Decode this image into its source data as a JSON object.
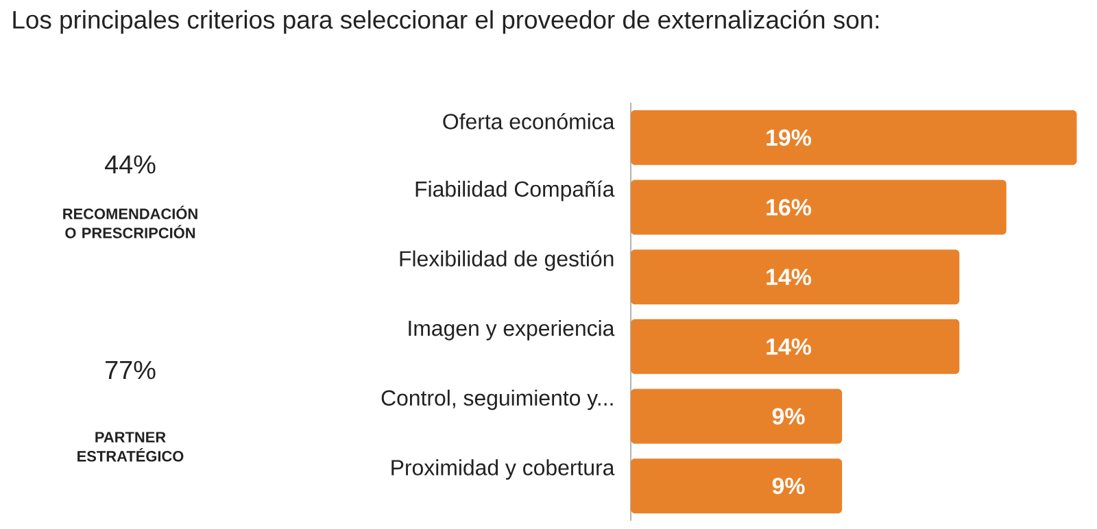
{
  "chart_data": {
    "type": "bar",
    "orientation": "horizontal",
    "title": "Los principales criterios para seleccionar el proveedor de externalización son:",
    "categories": [
      "Oferta económica",
      "Fiabilidad Compañía",
      "Flexibilidad de gestión",
      "Imagen y experiencia",
      "Control, seguimiento y...",
      "Proximidad  y cobertura"
    ],
    "values": [
      19,
      16,
      14,
      14,
      9,
      9
    ],
    "value_labels": [
      "19%",
      "16%",
      "14%",
      "14%",
      "9%",
      "9%"
    ],
    "color": "#e8822a",
    "annotations": [
      "44%",
      "RECOMENDACIÓN O PRESCRIPCIÓN",
      "77%",
      "PARTNER ESTRATÉGICO"
    ]
  }
}
